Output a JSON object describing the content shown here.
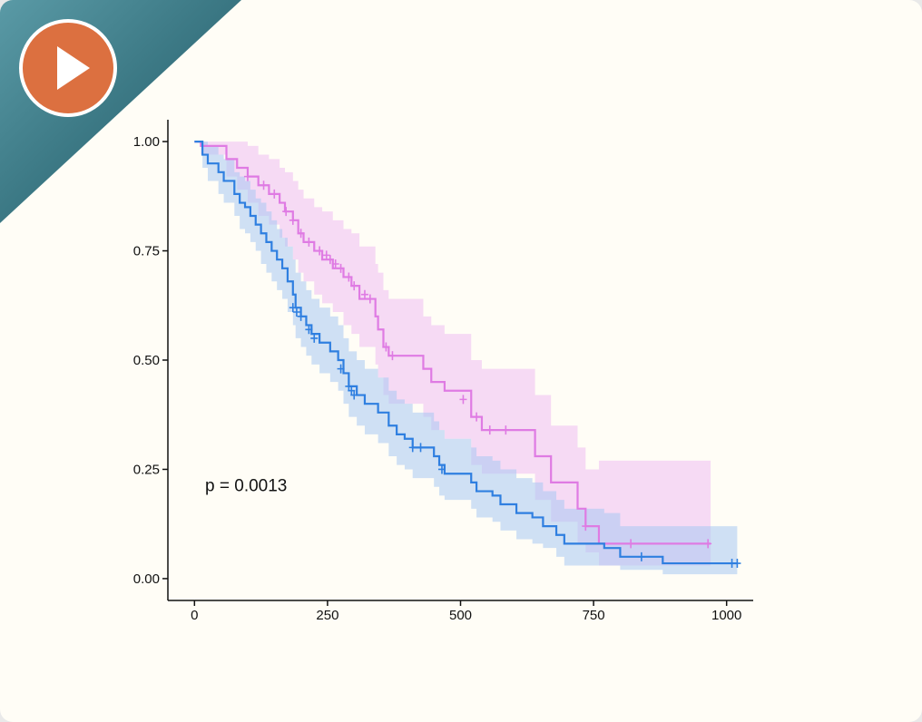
{
  "play_button": {
    "icon": "play-icon"
  },
  "colors": {
    "background": "#fffdf6",
    "corner": "#3d7a86",
    "play": "#dc7040",
    "group_a": "#df7be3",
    "group_b": "#2f7fe0"
  },
  "chart_data": {
    "type": "line",
    "subtype": "kaplan-meier",
    "title": "",
    "xlabel": "",
    "ylabel": "",
    "xlim": [
      -50,
      1050
    ],
    "ylim": [
      -0.05,
      1.05
    ],
    "x_ticks": [
      0,
      250,
      500,
      750,
      1000
    ],
    "y_ticks": [
      0.0,
      0.25,
      0.5,
      0.75,
      1.0
    ],
    "y_tick_labels": [
      "0.00",
      "0.25",
      "0.50",
      "0.75",
      "1.00"
    ],
    "grid": false,
    "legend": "none",
    "annotation": {
      "text": "p = 0.0013",
      "x": 20,
      "y": 0.2
    },
    "series": [
      {
        "key": "magenta",
        "color": "#df7be3",
        "band_color": "#efbdf3",
        "steps": [
          [
            0,
            1.0
          ],
          [
            12,
            0.99
          ],
          [
            60,
            0.96
          ],
          [
            80,
            0.94
          ],
          [
            100,
            0.92
          ],
          [
            120,
            0.9
          ],
          [
            140,
            0.88
          ],
          [
            160,
            0.86
          ],
          [
            170,
            0.84
          ],
          [
            185,
            0.82
          ],
          [
            195,
            0.79
          ],
          [
            205,
            0.77
          ],
          [
            225,
            0.75
          ],
          [
            240,
            0.73
          ],
          [
            260,
            0.71
          ],
          [
            280,
            0.69
          ],
          [
            295,
            0.67
          ],
          [
            310,
            0.64
          ],
          [
            340,
            0.6
          ],
          [
            345,
            0.57
          ],
          [
            355,
            0.53
          ],
          [
            365,
            0.51
          ],
          [
            430,
            0.48
          ],
          [
            445,
            0.45
          ],
          [
            470,
            0.43
          ],
          [
            520,
            0.37
          ],
          [
            540,
            0.34
          ],
          [
            640,
            0.28
          ],
          [
            670,
            0.22
          ],
          [
            720,
            0.16
          ],
          [
            735,
            0.12
          ],
          [
            760,
            0.08
          ],
          [
            970,
            0.08
          ]
        ],
        "ci": [
          [
            0,
            1.0,
            1.0
          ],
          [
            12,
            1.0,
            0.97
          ],
          [
            60,
            1.0,
            0.92
          ],
          [
            80,
            1.0,
            0.89
          ],
          [
            100,
            0.99,
            0.86
          ],
          [
            120,
            0.97,
            0.83
          ],
          [
            140,
            0.96,
            0.81
          ],
          [
            160,
            0.94,
            0.78
          ],
          [
            170,
            0.93,
            0.76
          ],
          [
            185,
            0.91,
            0.73
          ],
          [
            195,
            0.89,
            0.7
          ],
          [
            205,
            0.87,
            0.68
          ],
          [
            225,
            0.85,
            0.65
          ],
          [
            240,
            0.84,
            0.63
          ],
          [
            260,
            0.82,
            0.61
          ],
          [
            280,
            0.8,
            0.58
          ],
          [
            295,
            0.79,
            0.56
          ],
          [
            310,
            0.76,
            0.53
          ],
          [
            340,
            0.72,
            0.49
          ],
          [
            345,
            0.7,
            0.46
          ],
          [
            355,
            0.66,
            0.42
          ],
          [
            365,
            0.64,
            0.4
          ],
          [
            430,
            0.6,
            0.37
          ],
          [
            445,
            0.58,
            0.34
          ],
          [
            470,
            0.56,
            0.32
          ],
          [
            520,
            0.5,
            0.26
          ],
          [
            540,
            0.48,
            0.24
          ],
          [
            640,
            0.42,
            0.18
          ],
          [
            670,
            0.35,
            0.13
          ],
          [
            720,
            0.3,
            0.08
          ],
          [
            735,
            0.25,
            0.06
          ],
          [
            760,
            0.27,
            0.03
          ],
          [
            970,
            0.27,
            0.03
          ]
        ],
        "censored": [
          [
            100,
            0.92
          ],
          [
            130,
            0.9
          ],
          [
            150,
            0.88
          ],
          [
            172,
            0.84
          ],
          [
            185,
            0.82
          ],
          [
            200,
            0.79
          ],
          [
            215,
            0.77
          ],
          [
            235,
            0.75
          ],
          [
            248,
            0.74
          ],
          [
            255,
            0.73
          ],
          [
            265,
            0.72
          ],
          [
            275,
            0.71
          ],
          [
            290,
            0.69
          ],
          [
            300,
            0.67
          ],
          [
            320,
            0.65
          ],
          [
            330,
            0.64
          ],
          [
            360,
            0.53
          ],
          [
            372,
            0.51
          ],
          [
            505,
            0.41
          ],
          [
            530,
            0.37
          ],
          [
            555,
            0.34
          ],
          [
            585,
            0.34
          ],
          [
            735,
            0.12
          ],
          [
            820,
            0.08
          ],
          [
            965,
            0.08
          ]
        ]
      },
      {
        "key": "blue",
        "color": "#2f7fe0",
        "band_color": "#a8c8f2",
        "steps": [
          [
            0,
            1.0
          ],
          [
            15,
            0.97
          ],
          [
            25,
            0.95
          ],
          [
            45,
            0.93
          ],
          [
            55,
            0.91
          ],
          [
            75,
            0.88
          ],
          [
            85,
            0.86
          ],
          [
            95,
            0.85
          ],
          [
            105,
            0.83
          ],
          [
            115,
            0.81
          ],
          [
            125,
            0.79
          ],
          [
            135,
            0.77
          ],
          [
            145,
            0.75
          ],
          [
            155,
            0.73
          ],
          [
            165,
            0.71
          ],
          [
            175,
            0.68
          ],
          [
            185,
            0.65
          ],
          [
            190,
            0.62
          ],
          [
            200,
            0.6
          ],
          [
            210,
            0.58
          ],
          [
            220,
            0.56
          ],
          [
            235,
            0.54
          ],
          [
            255,
            0.52
          ],
          [
            270,
            0.5
          ],
          [
            280,
            0.47
          ],
          [
            290,
            0.44
          ],
          [
            305,
            0.42
          ],
          [
            320,
            0.4
          ],
          [
            345,
            0.38
          ],
          [
            365,
            0.35
          ],
          [
            380,
            0.33
          ],
          [
            395,
            0.32
          ],
          [
            410,
            0.3
          ],
          [
            450,
            0.28
          ],
          [
            460,
            0.26
          ],
          [
            470,
            0.24
          ],
          [
            520,
            0.22
          ],
          [
            530,
            0.2
          ],
          [
            560,
            0.19
          ],
          [
            575,
            0.17
          ],
          [
            605,
            0.15
          ],
          [
            635,
            0.14
          ],
          [
            655,
            0.12
          ],
          [
            680,
            0.1
          ],
          [
            695,
            0.08
          ],
          [
            770,
            0.07
          ],
          [
            800,
            0.05
          ],
          [
            880,
            0.035
          ],
          [
            1020,
            0.035
          ]
        ],
        "ci": [
          [
            0,
            1.0,
            1.0
          ],
          [
            15,
            1.0,
            0.94
          ],
          [
            25,
            0.99,
            0.91
          ],
          [
            45,
            0.97,
            0.88
          ],
          [
            55,
            0.96,
            0.86
          ],
          [
            75,
            0.93,
            0.83
          ],
          [
            85,
            0.92,
            0.8
          ],
          [
            95,
            0.91,
            0.79
          ],
          [
            105,
            0.89,
            0.77
          ],
          [
            115,
            0.87,
            0.75
          ],
          [
            125,
            0.86,
            0.72
          ],
          [
            135,
            0.84,
            0.7
          ],
          [
            145,
            0.82,
            0.68
          ],
          [
            155,
            0.8,
            0.66
          ],
          [
            165,
            0.78,
            0.64
          ],
          [
            175,
            0.76,
            0.61
          ],
          [
            185,
            0.73,
            0.58
          ],
          [
            190,
            0.7,
            0.55
          ],
          [
            200,
            0.68,
            0.53
          ],
          [
            210,
            0.66,
            0.51
          ],
          [
            220,
            0.64,
            0.49
          ],
          [
            235,
            0.62,
            0.47
          ],
          [
            255,
            0.6,
            0.45
          ],
          [
            270,
            0.58,
            0.43
          ],
          [
            280,
            0.55,
            0.4
          ],
          [
            290,
            0.52,
            0.37
          ],
          [
            305,
            0.5,
            0.35
          ],
          [
            320,
            0.48,
            0.33
          ],
          [
            345,
            0.46,
            0.31
          ],
          [
            365,
            0.43,
            0.28
          ],
          [
            380,
            0.41,
            0.26
          ],
          [
            395,
            0.4,
            0.25
          ],
          [
            410,
            0.38,
            0.23
          ],
          [
            450,
            0.36,
            0.21
          ],
          [
            460,
            0.34,
            0.19
          ],
          [
            470,
            0.32,
            0.18
          ],
          [
            520,
            0.3,
            0.16
          ],
          [
            530,
            0.28,
            0.14
          ],
          [
            560,
            0.27,
            0.13
          ],
          [
            575,
            0.25,
            0.11
          ],
          [
            605,
            0.23,
            0.09
          ],
          [
            635,
            0.22,
            0.08
          ],
          [
            655,
            0.2,
            0.07
          ],
          [
            680,
            0.18,
            0.05
          ],
          [
            695,
            0.16,
            0.03
          ],
          [
            770,
            0.15,
            0.03
          ],
          [
            800,
            0.12,
            0.02
          ],
          [
            880,
            0.12,
            0.01
          ],
          [
            1020,
            0.12,
            0.01
          ]
        ],
        "censored": [
          [
            185,
            0.62
          ],
          [
            192,
            0.61
          ],
          [
            200,
            0.6
          ],
          [
            215,
            0.57
          ],
          [
            225,
            0.55
          ],
          [
            275,
            0.48
          ],
          [
            290,
            0.44
          ],
          [
            295,
            0.43
          ],
          [
            300,
            0.42
          ],
          [
            410,
            0.3
          ],
          [
            425,
            0.3
          ],
          [
            465,
            0.25
          ],
          [
            840,
            0.05
          ],
          [
            1010,
            0.035
          ],
          [
            1020,
            0.035
          ]
        ]
      }
    ]
  }
}
